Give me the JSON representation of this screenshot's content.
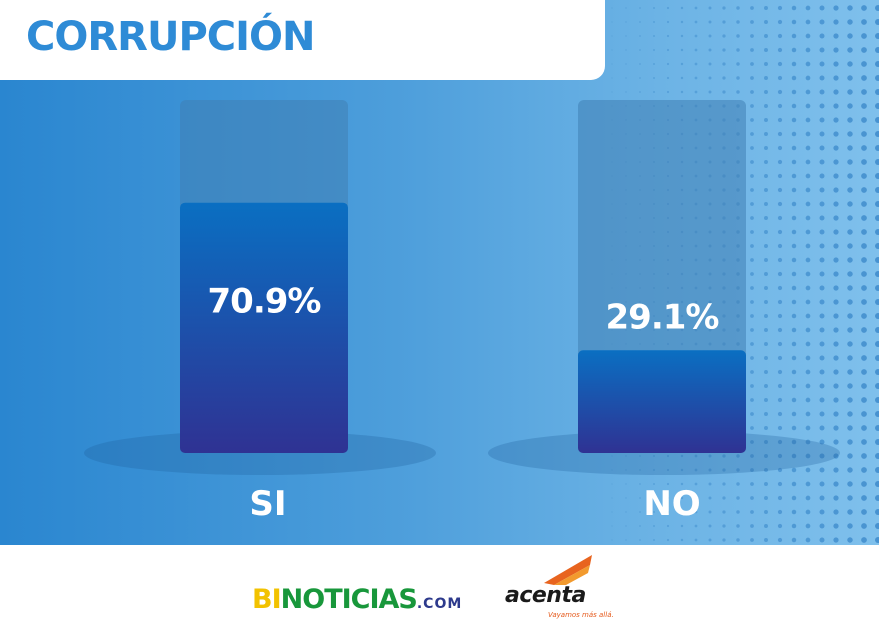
{
  "header": {
    "title": "CORRUPCIÓN"
  },
  "chart_data": {
    "type": "bar",
    "title": "CORRUPCIÓN",
    "categories": [
      "SI",
      "NO"
    ],
    "values": [
      70.9,
      29.1
    ],
    "value_labels": [
      "70.9%",
      "29.1%"
    ],
    "ylim": [
      0,
      100
    ],
    "grid": false,
    "colors": {
      "bar_top": "#0a6fc2",
      "bar_bottom": "#2f3293",
      "track": "#3f7fb5"
    }
  },
  "footer": {
    "logo_bi": "BI",
    "logo_noticias": "NOTICIAS",
    "logo_com": ".COM",
    "logo_acenta": "acenta",
    "logo_acenta_tagline": "Vayamos más allá."
  }
}
